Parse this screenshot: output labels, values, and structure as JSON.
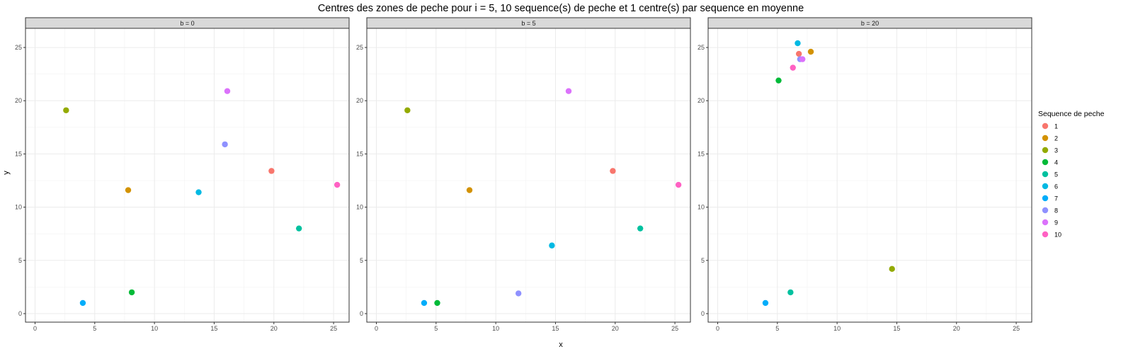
{
  "chart_data": {
    "type": "scatter",
    "title": "Centres des zones de peche pour i = 5, 10 sequence(s) de peche et 1 centre(s) par sequence en moyenne",
    "xlabel": "x",
    "ylabel": "y",
    "xlim": [
      -0.8,
      26.3
    ],
    "ylim": [
      -0.8,
      26.8
    ],
    "x_ticks": [
      0,
      5,
      10,
      15,
      20,
      25
    ],
    "y_ticks": [
      0,
      5,
      10,
      15,
      20,
      25
    ],
    "grid": true,
    "legend": {
      "title": "Sequence de peche",
      "position": "right",
      "entries": [
        {
          "label": "1",
          "color": "#F8766D"
        },
        {
          "label": "2",
          "color": "#D39200"
        },
        {
          "label": "3",
          "color": "#93AA00"
        },
        {
          "label": "4",
          "color": "#00BA38"
        },
        {
          "label": "5",
          "color": "#00C19F"
        },
        {
          "label": "6",
          "color": "#00B9E3"
        },
        {
          "label": "7",
          "color": "#00ADFA"
        },
        {
          "label": "8",
          "color": "#8F91FF"
        },
        {
          "label": "9",
          "color": "#DB72FB"
        },
        {
          "label": "10",
          "color": "#FF61C3"
        }
      ]
    },
    "panels": [
      {
        "label": "b = 0",
        "points": [
          {
            "series": "1",
            "x": 19.8,
            "y": 13.4
          },
          {
            "series": "2",
            "x": 7.8,
            "y": 11.6
          },
          {
            "series": "3",
            "x": 2.6,
            "y": 19.1
          },
          {
            "series": "4",
            "x": 8.1,
            "y": 2.0
          },
          {
            "series": "5",
            "x": 22.1,
            "y": 8.0
          },
          {
            "series": "6",
            "x": 13.7,
            "y": 11.4
          },
          {
            "series": "7",
            "x": 4.0,
            "y": 1.0
          },
          {
            "series": "8",
            "x": 15.9,
            "y": 15.9
          },
          {
            "series": "9",
            "x": 16.1,
            "y": 20.9
          },
          {
            "series": "10",
            "x": 25.3,
            "y": 12.1
          }
        ]
      },
      {
        "label": "b = 5",
        "points": [
          {
            "series": "1",
            "x": 19.8,
            "y": 13.4
          },
          {
            "series": "2",
            "x": 7.8,
            "y": 11.6
          },
          {
            "series": "3",
            "x": 2.6,
            "y": 19.1
          },
          {
            "series": "4",
            "x": 5.1,
            "y": 1.0
          },
          {
            "series": "5",
            "x": 22.1,
            "y": 8.0
          },
          {
            "series": "6",
            "x": 14.7,
            "y": 6.4
          },
          {
            "series": "7",
            "x": 4.0,
            "y": 1.0
          },
          {
            "series": "8",
            "x": 11.9,
            "y": 1.9
          },
          {
            "series": "9",
            "x": 16.1,
            "y": 20.9
          },
          {
            "series": "10",
            "x": 25.3,
            "y": 12.1
          }
        ]
      },
      {
        "label": "b = 20",
        "points": [
          {
            "series": "1",
            "x": 6.8,
            "y": 24.4
          },
          {
            "series": "2",
            "x": 7.8,
            "y": 24.6
          },
          {
            "series": "3",
            "x": 14.6,
            "y": 4.2
          },
          {
            "series": "4",
            "x": 5.1,
            "y": 21.9
          },
          {
            "series": "5",
            "x": 6.1,
            "y": 2.0
          },
          {
            "series": "6",
            "x": 6.7,
            "y": 25.4
          },
          {
            "series": "7",
            "x": 4.0,
            "y": 1.0
          },
          {
            "series": "8",
            "x": 6.9,
            "y": 23.9
          },
          {
            "series": "9",
            "x": 7.1,
            "y": 23.9
          },
          {
            "series": "10",
            "x": 6.3,
            "y": 23.1
          }
        ]
      }
    ]
  }
}
